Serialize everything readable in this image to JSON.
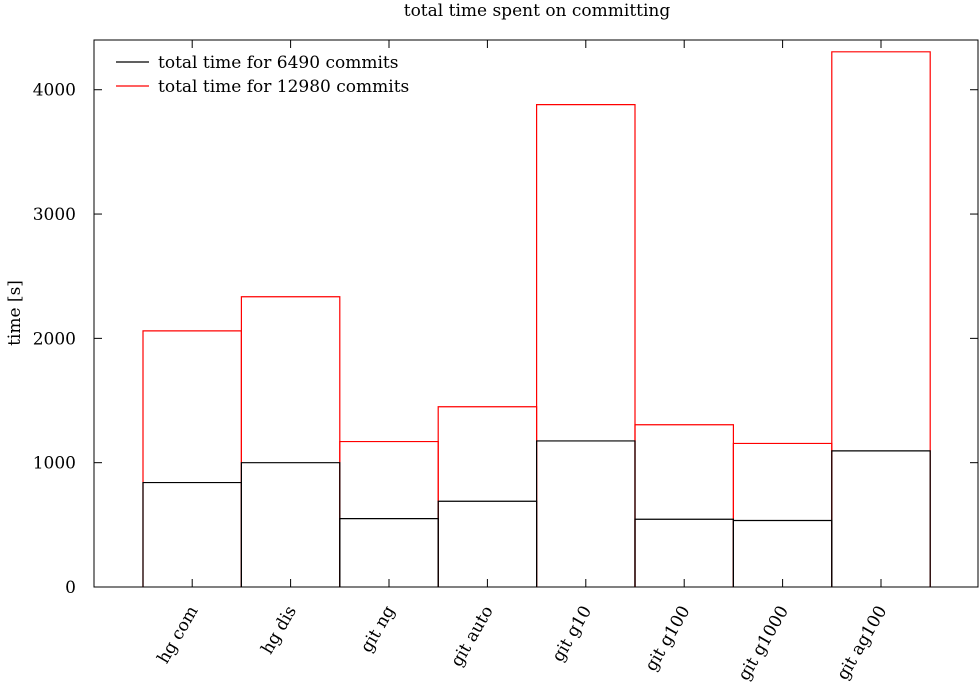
{
  "chart_data": {
    "type": "bar",
    "title": "total time spent on committing",
    "xlabel": "",
    "ylabel": "time [s]",
    "ylim": [
      0,
      4400
    ],
    "yticks": [
      0,
      1000,
      2000,
      3000,
      4000
    ],
    "categories": [
      "hg com",
      "hg dis",
      "git ng",
      "git auto",
      "git g10",
      "git g100",
      "git g1000",
      "git ag100"
    ],
    "series": [
      {
        "name": "total time for 6490 commits",
        "color": "#000000",
        "values": [
          840,
          1000,
          550,
          690,
          1175,
          545,
          535,
          1095
        ]
      },
      {
        "name": "total time for 12980 commits",
        "color": "#ff0000",
        "values": [
          2060,
          2335,
          1170,
          1450,
          3880,
          1305,
          1155,
          4305
        ]
      }
    ],
    "grid": false,
    "legend_position": "top-left"
  }
}
